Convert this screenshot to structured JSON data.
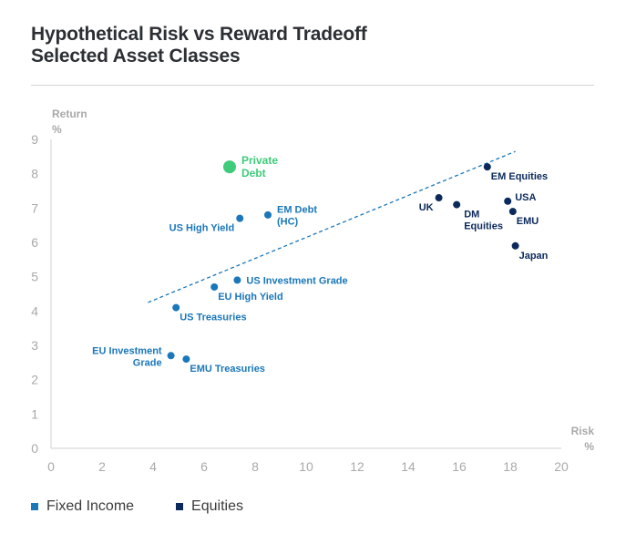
{
  "title_line1": "Hypothetical Risk vs Reward Tradeoff",
  "title_line2": "Selected Asset Classes",
  "colors": {
    "fixed_income": "#1a77b9",
    "equities": "#0b2a5b",
    "private_debt": "#3ecb7a",
    "axis_text": "#a9a9a9",
    "trend": "#1a77b9"
  },
  "legend": [
    {
      "label": "Fixed Income",
      "color": "#1a77b9"
    },
    {
      "label": "Equities",
      "color": "#0b2a5b"
    }
  ],
  "chart_data": {
    "type": "scatter",
    "title": "Hypothetical Risk vs Reward Tradeoff Selected Asset Classes",
    "xlabel": [
      "Risk",
      "%"
    ],
    "ylabel": [
      "Return",
      "%"
    ],
    "xlim": [
      0,
      20
    ],
    "ylim": [
      0,
      9
    ],
    "xticks": [
      0,
      2,
      4,
      6,
      8,
      10,
      12,
      14,
      16,
      18,
      20
    ],
    "yticks": [
      0,
      1,
      2,
      3,
      4,
      5,
      6,
      7,
      8,
      9
    ],
    "grid": false,
    "series": [
      {
        "name": "Fixed Income",
        "points": [
          {
            "label": [
              "US High Yield"
            ],
            "x": 7.4,
            "y": 6.7,
            "label_pos": "below-left"
          },
          {
            "label": [
              "EM Debt",
              "(HC)"
            ],
            "x": 8.5,
            "y": 6.8,
            "label_pos": "right"
          },
          {
            "label": [
              "US Investment Grade"
            ],
            "x": 7.3,
            "y": 4.9,
            "label_pos": "right"
          },
          {
            "label": [
              "EU High Yield"
            ],
            "x": 6.4,
            "y": 4.7,
            "label_pos": "below-right"
          },
          {
            "label": [
              "US Treasuries"
            ],
            "x": 4.9,
            "y": 4.1,
            "label_pos": "below-right"
          },
          {
            "label": [
              "EU Investment",
              "Grade"
            ],
            "x": 4.7,
            "y": 2.7,
            "label_pos": "left"
          },
          {
            "label": [
              "EMU Treasuries"
            ],
            "x": 5.3,
            "y": 2.6,
            "label_pos": "below-right"
          }
        ]
      },
      {
        "name": "Equities",
        "points": [
          {
            "label": [
              "EM Equities"
            ],
            "x": 17.1,
            "y": 8.2,
            "label_pos": "below-right"
          },
          {
            "label": [
              "UK"
            ],
            "x": 15.2,
            "y": 7.3,
            "label_pos": "below-left"
          },
          {
            "label": [
              "DM",
              "Equities"
            ],
            "x": 15.9,
            "y": 7.1,
            "label_pos": "below"
          },
          {
            "label": [
              "USA"
            ],
            "x": 17.9,
            "y": 7.2,
            "label_pos": "above-right"
          },
          {
            "label": [
              "EMU"
            ],
            "x": 18.1,
            "y": 6.9,
            "label_pos": "below-right"
          },
          {
            "label": [
              "Japan"
            ],
            "x": 18.2,
            "y": 5.9,
            "label_pos": "below-right"
          }
        ]
      },
      {
        "name": "Private Debt",
        "points": [
          {
            "label": [
              "Private",
              "Debt"
            ],
            "x": 7.0,
            "y": 8.2,
            "label_pos": "right"
          }
        ]
      }
    ],
    "trendline": {
      "style": "dashed",
      "from": {
        "x": 3.8,
        "y": 4.25
      },
      "to": {
        "x": 18.2,
        "y": 8.65
      }
    }
  }
}
